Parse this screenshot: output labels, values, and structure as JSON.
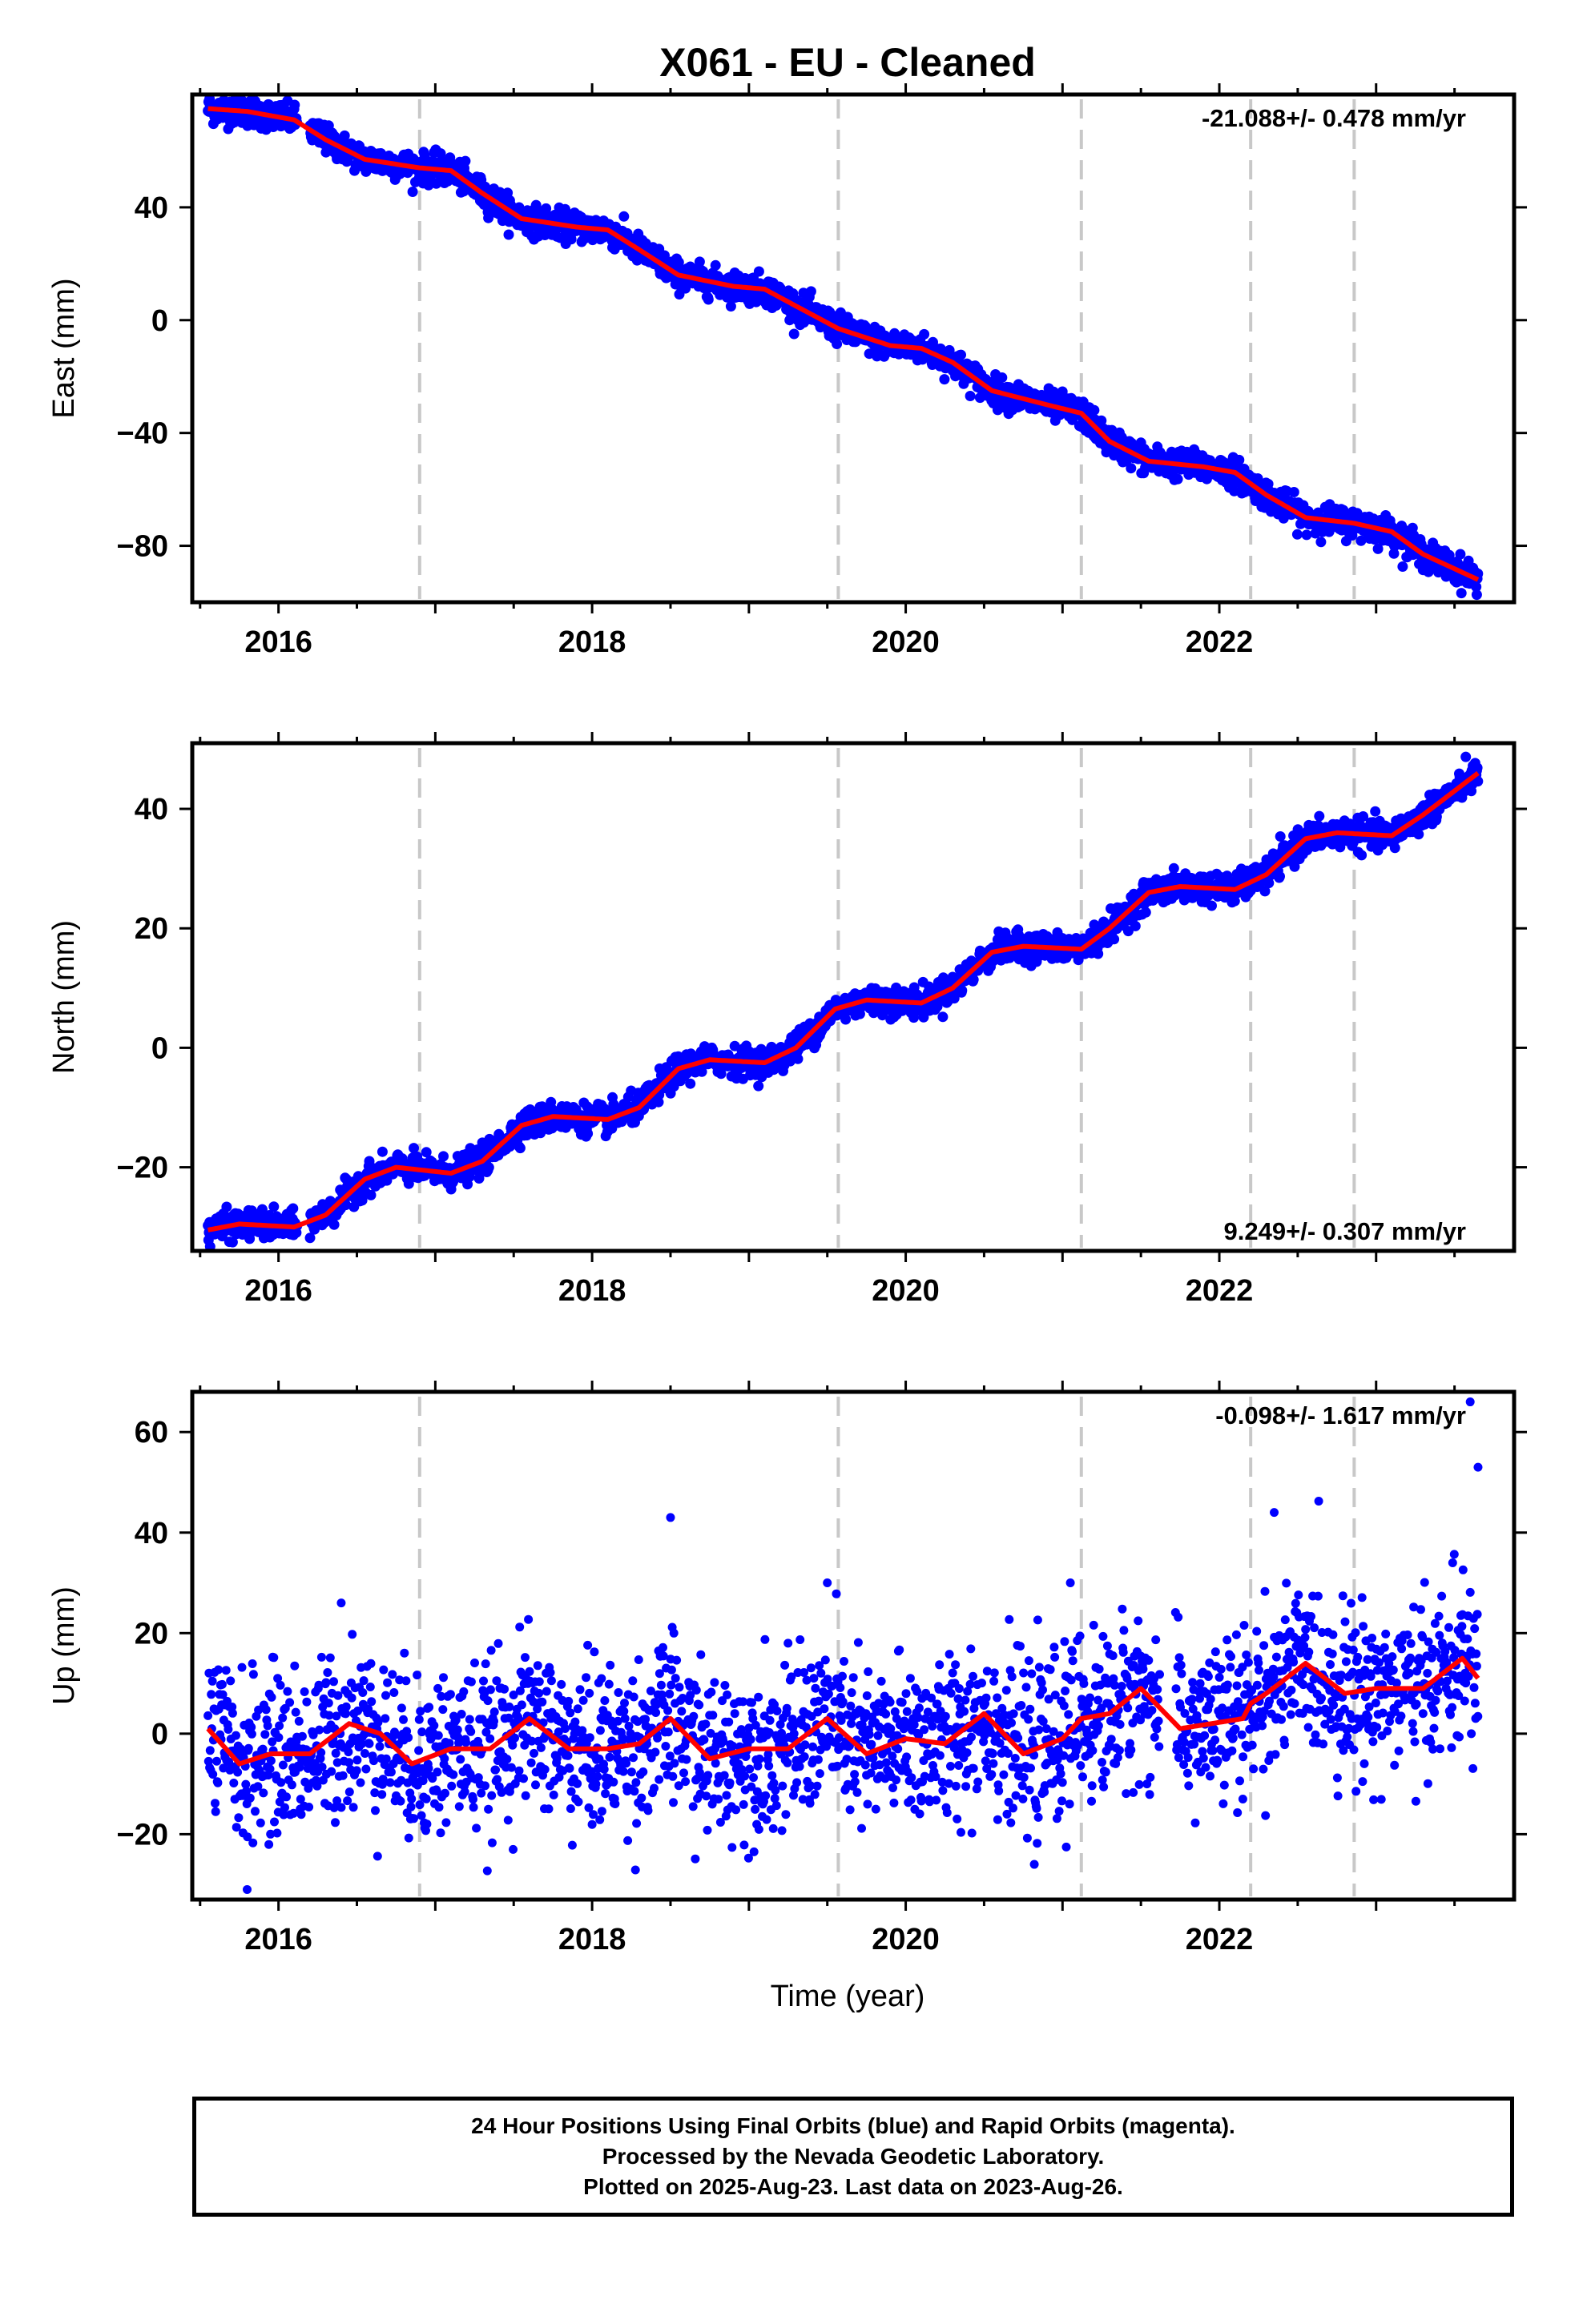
{
  "figure": {
    "title": "X061  - EU - Cleaned",
    "xlabel": "Time (year)"
  },
  "footer": {
    "line1": "24 Hour Positions Using Final Orbits (blue) and Rapid Orbits (magenta).",
    "line2": "Processed by the Nevada Geodetic Laboratory.",
    "line3": "Plotted on 2025-Aug-23. Last data on 2023-Aug-26."
  },
  "colors": {
    "points": "#0000ff",
    "model": "#ff0000",
    "event_lines": "#c8c8c8",
    "frame": "#000000"
  },
  "chart_data": [
    {
      "type": "scatter",
      "panel": "east",
      "ylabel": "East (mm)",
      "rate_label": "-21.088+/- 0.478 mm/yr",
      "xlim": [
        2015.45,
        2023.88
      ],
      "ylim": [
        -100,
        80
      ],
      "yticks": [
        40,
        0,
        -40,
        -80
      ],
      "xticks": [
        2016,
        2018,
        2020,
        2022
      ],
      "event_lines_x": [
        2016.9,
        2019.57,
        2021.12,
        2022.2,
        2022.86
      ],
      "model_x": [
        2015.55,
        2015.8,
        2016.1,
        2016.3,
        2016.55,
        2016.9,
        2017.1,
        2017.3,
        2017.55,
        2017.9,
        2018.1,
        2018.3,
        2018.55,
        2018.9,
        2019.1,
        2019.3,
        2019.57,
        2019.9,
        2020.1,
        2020.3,
        2020.55,
        2020.9,
        2021.12,
        2021.3,
        2021.55,
        2021.9,
        2022.1,
        2022.3,
        2022.55,
        2022.86,
        2023.1,
        2023.3,
        2023.65
      ],
      "model_y": [
        75,
        74,
        71,
        64,
        57,
        54,
        53,
        45,
        36,
        33,
        32,
        25,
        16,
        12,
        11,
        5,
        -3,
        -9,
        -10,
        -15,
        -25,
        -30,
        -33,
        -43,
        -50,
        -52,
        -54,
        -62,
        -70,
        -72,
        -75,
        -83,
        -92
      ],
      "amplitude": 3.0,
      "outliers": []
    },
    {
      "type": "scatter",
      "panel": "north",
      "ylabel": "North (mm)",
      "rate_label": "9.249+/- 0.307 mm/yr",
      "xlim": [
        2015.45,
        2023.88
      ],
      "ylim": [
        -34,
        51
      ],
      "yticks": [
        40,
        20,
        0,
        -20
      ],
      "xticks": [
        2016,
        2018,
        2020,
        2022
      ],
      "event_lines_x": [
        2016.9,
        2019.57,
        2021.12,
        2022.2,
        2022.86
      ],
      "model_x": [
        2015.55,
        2015.75,
        2016.1,
        2016.3,
        2016.55,
        2016.75,
        2017.1,
        2017.3,
        2017.55,
        2017.75,
        2018.1,
        2018.3,
        2018.55,
        2018.75,
        2019.1,
        2019.3,
        2019.55,
        2019.75,
        2020.1,
        2020.3,
        2020.55,
        2020.75,
        2021.12,
        2021.3,
        2021.55,
        2021.75,
        2022.1,
        2022.3,
        2022.55,
        2022.75,
        2023.1,
        2023.3,
        2023.65
      ],
      "model_y": [
        -30.5,
        -29.5,
        -30,
        -28,
        -22,
        -20,
        -21,
        -19,
        -13,
        -11.5,
        -12,
        -10,
        -3.5,
        -2,
        -2.5,
        0,
        6.5,
        8,
        7.5,
        10,
        16,
        17,
        16.5,
        20,
        26,
        27,
        26.5,
        29,
        35,
        36,
        35.5,
        39,
        46
      ],
      "amplitude": 1.4,
      "outliers": []
    },
    {
      "type": "scatter",
      "panel": "up",
      "ylabel": "Up (mm)",
      "rate_label": "-0.098+/- 1.617 mm/yr",
      "xlim": [
        2015.45,
        2023.88
      ],
      "ylim": [
        -33,
        68
      ],
      "yticks": [
        60,
        40,
        20,
        0,
        -20
      ],
      "xticks": [
        2016,
        2018,
        2020,
        2022
      ],
      "event_lines_x": [
        2016.9,
        2019.57,
        2021.12,
        2022.2,
        2022.86
      ],
      "model_x": [
        2015.55,
        2015.75,
        2015.95,
        2016.2,
        2016.45,
        2016.65,
        2016.85,
        2017.1,
        2017.35,
        2017.6,
        2017.85,
        2018.1,
        2018.3,
        2018.5,
        2018.75,
        2019.0,
        2019.25,
        2019.5,
        2019.75,
        2020.0,
        2020.25,
        2020.5,
        2020.75,
        2021.0,
        2021.12,
        2021.3,
        2021.5,
        2021.75,
        2021.95,
        2022.15,
        2022.2,
        2022.3,
        2022.55,
        2022.8,
        2023.0,
        2023.3,
        2023.55,
        2023.65
      ],
      "model_y": [
        1,
        -6,
        -4,
        -4,
        2,
        0,
        -6,
        -3,
        -3,
        3,
        -3,
        -3,
        -2,
        3,
        -5,
        -3,
        -3,
        3,
        -4,
        -1,
        -2,
        4,
        -4,
        -1,
        3,
        4,
        9,
        1,
        2,
        3,
        6,
        8,
        14,
        8,
        9,
        9,
        15,
        11
      ],
      "amplitude": 8.0,
      "outliers": [
        [
          2015.8,
          -31
        ],
        [
          2018.5,
          43
        ],
        [
          2022.35,
          44
        ],
        [
          2023.6,
          66
        ],
        [
          2023.65,
          53
        ],
        [
          2021.05,
          30
        ],
        [
          2020.82,
          -26
        ],
        [
          2016.4,
          26
        ],
        [
          2019.5,
          30
        ],
        [
          2022.15,
          -13
        ]
      ]
    }
  ]
}
